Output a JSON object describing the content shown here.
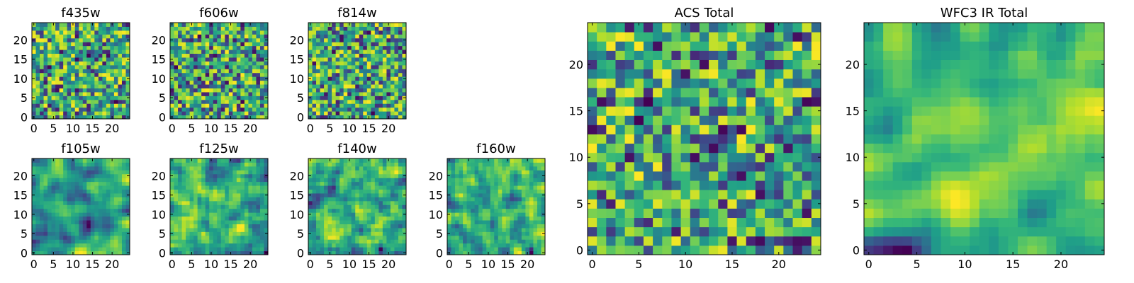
{
  "chart_data": [
    {
      "type": "heatmap",
      "title": "f435w",
      "xticks": [
        0,
        5,
        10,
        15,
        20
      ],
      "yticks": [
        0,
        5,
        10,
        15,
        20
      ],
      "xlim": [
        0,
        25
      ],
      "ylim": [
        0,
        25
      ],
      "grid": 25,
      "seed": 11,
      "smooth": 0,
      "colormap": "viridis"
    },
    {
      "type": "heatmap",
      "title": "f606w",
      "xticks": [
        0,
        5,
        10,
        15,
        20
      ],
      "yticks": [
        0,
        5,
        10,
        15,
        20
      ],
      "xlim": [
        0,
        25
      ],
      "ylim": [
        0,
        25
      ],
      "grid": 25,
      "seed": 23,
      "smooth": 0,
      "colormap": "viridis"
    },
    {
      "type": "heatmap",
      "title": "f814w",
      "xticks": [
        0,
        5,
        10,
        15,
        20
      ],
      "yticks": [
        0,
        5,
        10,
        15,
        20
      ],
      "xlim": [
        0,
        25
      ],
      "ylim": [
        0,
        25
      ],
      "grid": 25,
      "seed": 37,
      "smooth": 0,
      "colormap": "viridis"
    },
    {
      "type": "heatmap",
      "title": "f105w",
      "xticks": [
        0,
        5,
        10,
        15,
        20
      ],
      "yticks": [
        0,
        5,
        10,
        15,
        20
      ],
      "xlim": [
        0,
        25
      ],
      "ylim": [
        0,
        25
      ],
      "grid": 25,
      "seed": 41,
      "smooth": 2,
      "colormap": "viridis"
    },
    {
      "type": "heatmap",
      "title": "f125w",
      "xticks": [
        0,
        5,
        10,
        15,
        20
      ],
      "yticks": [
        0,
        5,
        10,
        15,
        20
      ],
      "xlim": [
        0,
        25
      ],
      "ylim": [
        0,
        25
      ],
      "grid": 25,
      "seed": 53,
      "smooth": 1,
      "colormap": "viridis"
    },
    {
      "type": "heatmap",
      "title": "f140w",
      "xticks": [
        0,
        5,
        10,
        15,
        20
      ],
      "yticks": [
        0,
        5,
        10,
        15,
        20
      ],
      "xlim": [
        0,
        25
      ],
      "ylim": [
        0,
        25
      ],
      "grid": 25,
      "seed": 67,
      "smooth": 1,
      "colormap": "viridis"
    },
    {
      "type": "heatmap",
      "title": "f160w",
      "xticks": [
        0,
        5,
        10,
        15,
        20
      ],
      "yticks": [
        0,
        5,
        10,
        15,
        20
      ],
      "xlim": [
        0,
        25
      ],
      "ylim": [
        0,
        25
      ],
      "grid": 25,
      "seed": 79,
      "smooth": 1,
      "colormap": "viridis"
    },
    {
      "type": "heatmap",
      "title": "ACS Total",
      "xticks": [
        0,
        5,
        10,
        15,
        20
      ],
      "yticks": [
        0,
        5,
        10,
        15,
        20
      ],
      "xlim": [
        0,
        25
      ],
      "ylim": [
        0,
        25
      ],
      "grid": 25,
      "seed": 83,
      "smooth": 0,
      "colormap": "viridis"
    },
    {
      "type": "heatmap",
      "title": "WFC3 IR Total",
      "xticks": [
        0,
        5,
        10,
        15,
        20
      ],
      "yticks": [
        0,
        5,
        10,
        15,
        20
      ],
      "xlim": [
        0,
        25
      ],
      "ylim": [
        0,
        25
      ],
      "grid": 25,
      "seed": 97,
      "smooth": 2,
      "colormap": "viridis"
    }
  ]
}
